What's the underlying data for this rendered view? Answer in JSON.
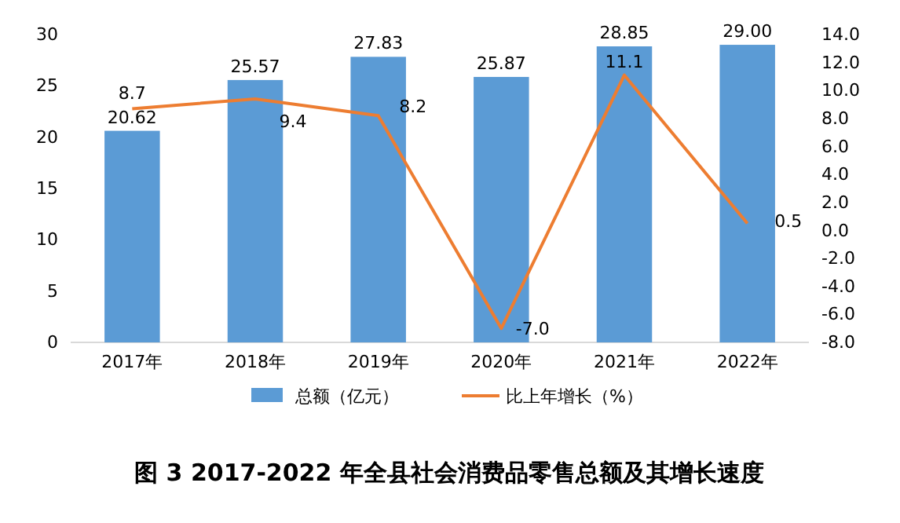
{
  "chart_data": {
    "type": "bar",
    "title": "图 3 2017-2022 年全县社会消费品零售总额及其增长速度",
    "categories": [
      "2017年",
      "2018年",
      "2019年",
      "2020年",
      "2021年",
      "2022年"
    ],
    "series": [
      {
        "name": "总额（亿元）",
        "color": "#5b9bd5",
        "values": [
          20.62,
          25.57,
          27.83,
          25.87,
          28.85,
          29.0
        ],
        "value_labels": [
          "20.62",
          "25.57",
          "27.83",
          "25.87",
          "28.85",
          "29.00"
        ]
      },
      {
        "name": "比上年增长（%）",
        "type": "line",
        "axis": "y2",
        "color": "#ed7d31",
        "values": [
          8.7,
          9.4,
          8.2,
          -7.0,
          11.1,
          0.5
        ],
        "value_labels": [
          "8.7",
          "9.4",
          "8.2",
          "-7.0",
          "11.1",
          "0.5"
        ]
      }
    ],
    "ylim": [
      0,
      30
    ],
    "yticks": [
      0,
      5,
      10,
      15,
      20,
      25,
      30
    ],
    "y2lim": [
      -8,
      14
    ],
    "y2ticks": [
      {
        "value": -8,
        "label": "-8.0"
      },
      {
        "value": -6,
        "label": "-6.0"
      },
      {
        "value": -4,
        "label": "-4.0"
      },
      {
        "value": -2,
        "label": "-2.0"
      },
      {
        "value": 0,
        "label": "0.0"
      },
      {
        "value": 2,
        "label": "2.0"
      },
      {
        "value": 4,
        "label": "4.0"
      },
      {
        "value": 6,
        "label": "6.0"
      },
      {
        "value": 8,
        "label": "8.0"
      },
      {
        "value": 10,
        "label": "10.0"
      },
      {
        "value": 12,
        "label": "12.0"
      },
      {
        "value": 14,
        "label": "14.0"
      }
    ],
    "legend": "bottom",
    "grid": false,
    "marker": "none",
    "line_style": "solid"
  }
}
